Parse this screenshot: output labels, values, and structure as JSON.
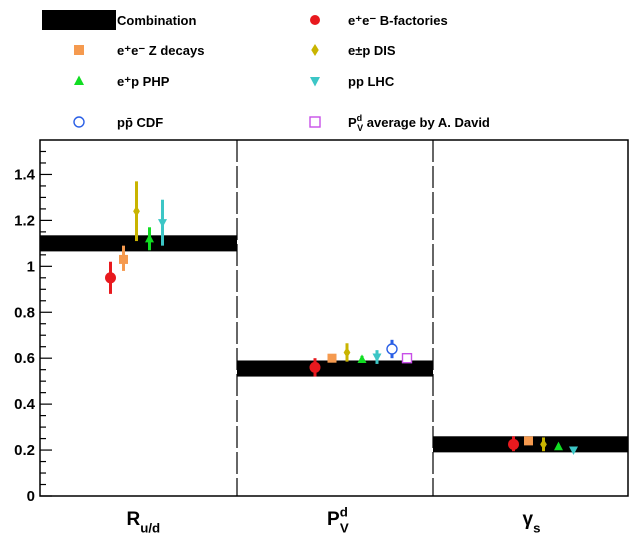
{
  "chart_data": {
    "type": "scatter",
    "ylim": [
      0,
      1.55
    ],
    "yticks": [
      "0",
      "0.2",
      "0.4",
      "0.6",
      "0.8",
      "1",
      "1.2",
      "1.4"
    ],
    "categories": [
      {
        "main": "R",
        "sub": "u/d",
        "sup": ""
      },
      {
        "main": "P",
        "sub": "V",
        "sup": "d"
      },
      {
        "main": "γ",
        "sub": "s",
        "sup": ""
      }
    ],
    "legend": [
      {
        "marker": "band",
        "color": "#000000",
        "text": "Combination"
      },
      {
        "marker": "circle",
        "color": "#e8191e",
        "text": "e⁺e⁻ B-factories"
      },
      {
        "marker": "square",
        "color": "#f59a4f",
        "text": "e⁺e⁻ Z decays"
      },
      {
        "marker": "diamond",
        "color": "#c9b400",
        "text": "e±p DIS"
      },
      {
        "marker": "triangle-up",
        "color": "#11dd22",
        "text": "e⁺p PHP"
      },
      {
        "marker": "triangle-down",
        "color": "#3cc6c6",
        "text": "pp LHC"
      },
      {
        "marker": "circle-open",
        "color": "#2a5fe6",
        "text": "pp̄ CDF"
      },
      {
        "marker": "square-open",
        "color": "#c84fe8",
        "text": "P average by A. David",
        "sup": "d",
        "sub": "V"
      }
    ],
    "bands": [
      {
        "category": 0,
        "center": 1.1,
        "half_width": 0.035
      },
      {
        "category": 1,
        "center": 0.555,
        "half_width": 0.035
      },
      {
        "category": 2,
        "center": 0.225,
        "half_width": 0.035
      }
    ],
    "series": [
      {
        "marker": "circle",
        "color": "#e8191e",
        "points": [
          {
            "category": 0,
            "y": 0.95,
            "err_lo": 0.07,
            "err_hi": 0.07
          },
          {
            "category": 1,
            "y": 0.56,
            "err_lo": 0.04,
            "err_hi": 0.04
          },
          {
            "category": 2,
            "y": 0.225,
            "err_lo": 0.03,
            "err_hi": 0.035
          }
        ]
      },
      {
        "marker": "square",
        "color": "#f59a4f",
        "points": [
          {
            "category": 0,
            "y": 1.03,
            "err_lo": 0.05,
            "err_hi": 0.06
          },
          {
            "category": 1,
            "y": 0.6,
            "err_lo": 0.01,
            "err_hi": 0.01
          },
          {
            "category": 2,
            "y": 0.24,
            "err_lo": 0.01,
            "err_hi": 0.01
          }
        ]
      },
      {
        "marker": "diamond",
        "color": "#c9b400",
        "points": [
          {
            "category": 0,
            "y": 1.24,
            "err_lo": 0.13,
            "err_hi": 0.13
          },
          {
            "category": 1,
            "y": 0.625,
            "err_lo": 0.04,
            "err_hi": 0.04
          },
          {
            "category": 2,
            "y": 0.225,
            "err_lo": 0.03,
            "err_hi": 0.03
          }
        ]
      },
      {
        "marker": "triangle-up",
        "color": "#11dd22",
        "points": [
          {
            "category": 0,
            "y": 1.12,
            "err_lo": 0.05,
            "err_hi": 0.05
          },
          {
            "category": 1,
            "y": 0.595,
            "err_lo": 0.015,
            "err_hi": 0.015
          },
          {
            "category": 2,
            "y": 0.215,
            "err_lo": 0.01,
            "err_hi": 0.01
          }
        ]
      },
      {
        "marker": "triangle-down",
        "color": "#3cc6c6",
        "points": [
          {
            "category": 0,
            "y": 1.19,
            "err_lo": 0.1,
            "err_hi": 0.1
          },
          {
            "category": 1,
            "y": 0.605,
            "err_lo": 0.03,
            "err_hi": 0.03
          },
          {
            "category": 2,
            "y": 0.2,
            "err_lo": 0.008,
            "err_hi": 0.008
          }
        ]
      },
      {
        "marker": "circle-open",
        "color": "#2a5fe6",
        "points": [
          {
            "category": 1,
            "y": 0.64,
            "err_lo": 0.04,
            "err_hi": 0.04
          }
        ]
      },
      {
        "marker": "square-open",
        "color": "#c84fe8",
        "points": [
          {
            "category": 1,
            "y": 0.6,
            "err_lo": 0.01,
            "err_hi": 0.01
          }
        ]
      }
    ]
  }
}
